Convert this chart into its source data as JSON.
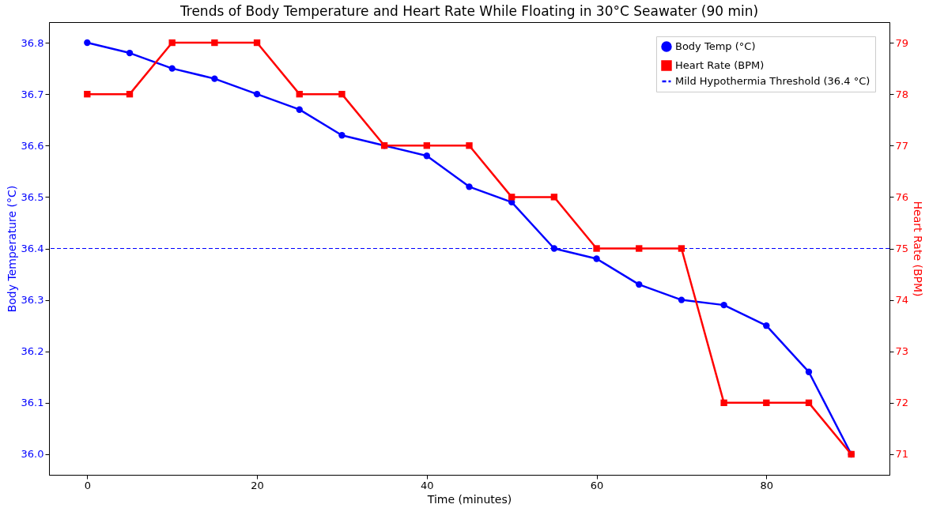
{
  "chart_data": {
    "type": "line",
    "title": "Trends of Body Temperature and Heart Rate While Floating in 30°C Seawater (90 min)",
    "xlabel": "Time (minutes)",
    "ylabel": "Body Temperature (°C)",
    "y2label": "Heart Rate (BPM)",
    "x": [
      0,
      5,
      10,
      15,
      20,
      25,
      30,
      35,
      40,
      45,
      50,
      55,
      60,
      65,
      70,
      75,
      80,
      85,
      90
    ],
    "series": [
      {
        "name": "Body Temp (°C)",
        "color": "#0000ff",
        "marker": "circle",
        "values": [
          36.8,
          36.78,
          36.75,
          36.73,
          36.7,
          36.67,
          36.62,
          36.6,
          36.58,
          36.52,
          36.49,
          36.4,
          36.38,
          36.33,
          36.3,
          36.29,
          36.25,
          36.16,
          36.0
        ]
      },
      {
        "name": "Heart Rate (BPM)",
        "color": "#ff0000",
        "marker": "square",
        "axis": "y2",
        "values": [
          78,
          78,
          79,
          79,
          79,
          78,
          78,
          77,
          77,
          77,
          76,
          76,
          75,
          75,
          75,
          72,
          72,
          72,
          71
        ]
      }
    ],
    "ref_lines": [
      {
        "axis": "y",
        "value": 36.4,
        "label": "Mild Hypothermia Threshold (36.4 °C)",
        "color": "#0000ff",
        "line_style": "dashed"
      }
    ],
    "xlim": [
      -4.5,
      94.5
    ],
    "xticks": [
      0,
      20,
      40,
      60,
      80
    ],
    "ylim": [
      35.96,
      36.84
    ],
    "yticks": [
      {
        "value": 36.0,
        "label": "36.0"
      },
      {
        "value": 36.1,
        "label": "36.1"
      },
      {
        "value": 36.2,
        "label": "36.2"
      },
      {
        "value": 36.3,
        "label": "36.3"
      },
      {
        "value": 36.4,
        "label": "36.4"
      },
      {
        "value": 36.5,
        "label": "36.5"
      },
      {
        "value": 36.6,
        "label": "36.6"
      },
      {
        "value": 36.7,
        "label": "36.7"
      },
      {
        "value": 36.8,
        "label": "36.8"
      }
    ],
    "y2lim": [
      70.6,
      79.4
    ],
    "y2ticks": [
      71,
      72,
      73,
      74,
      75,
      76,
      77,
      78,
      79
    ],
    "grid": false,
    "legend": "top right",
    "line_style": "solid"
  }
}
